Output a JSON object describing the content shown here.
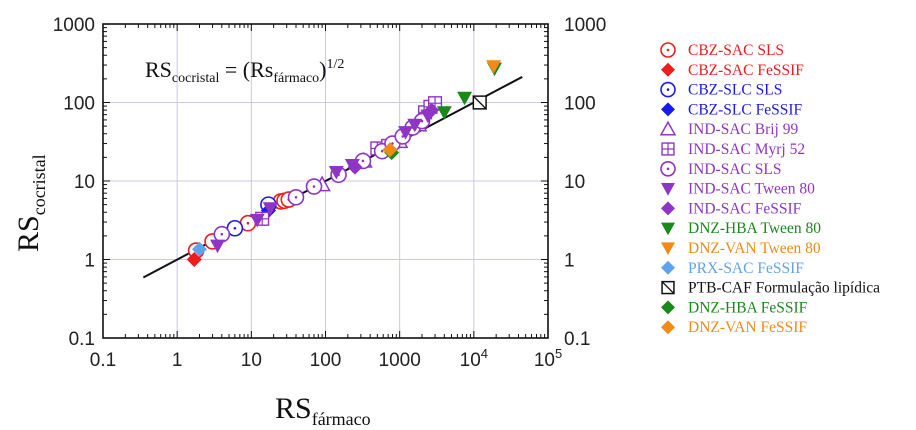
{
  "chart_data": {
    "type": "scatter",
    "title": "",
    "xlabel": {
      "main": "RS",
      "sub": "fármaco"
    },
    "ylabel": {
      "main": "RS",
      "sub": "cocristal"
    },
    "xscale": "log",
    "yscale": "log",
    "xlim": [
      0.1,
      100000
    ],
    "ylim": [
      0.1,
      1000
    ],
    "x_ticks": [
      "0.1",
      "1",
      "10",
      "100",
      "1000",
      "10^4",
      "10^5"
    ],
    "x_tick_values": [
      0.1,
      1,
      10,
      100,
      1000,
      10000,
      100000
    ],
    "y_ticks": [
      "0.1",
      "1",
      "10",
      "100",
      "1000"
    ],
    "y_tick_values": [
      0.1,
      1,
      10,
      100,
      1000
    ],
    "right_y_ticks": [
      "0.1",
      "1",
      "10",
      "100",
      "1000"
    ],
    "grid": true,
    "legend_position": "right-outside",
    "equation": {
      "lhs": "RS",
      "lhs_sub": "cocristal",
      "mid": " = (Rs",
      "mid_sub": "fármaco",
      "rhs": ")",
      "rhs_sup": "1/2"
    },
    "line": {
      "x": [
        0.35,
        45000
      ],
      "y": [
        0.59,
        212
      ]
    },
    "series": [
      {
        "name": "CBZ-SAC SLS",
        "marker": "circle-dot",
        "color": "#ee1c1c",
        "points": [
          [
            1.8,
            1.3
          ],
          [
            3,
            1.7
          ],
          [
            9,
            2.9
          ],
          [
            25,
            5.5
          ],
          [
            28,
            5.6
          ],
          [
            32,
            5.8
          ]
        ]
      },
      {
        "name": "CBZ-SAC FeSSIF",
        "marker": "diamond",
        "color": "#ee1c1c",
        "points": [
          [
            1.7,
            1.0
          ]
        ]
      },
      {
        "name": "CBZ-SLC SLS",
        "marker": "circle-dot",
        "color": "#1a1aee",
        "points": [
          [
            6,
            2.5
          ],
          [
            17,
            5.0
          ]
        ]
      },
      {
        "name": "CBZ-SLC FeSSIF",
        "marker": "diamond",
        "color": "#1a1aee",
        "points": [
          [
            17,
            4.2
          ]
        ]
      },
      {
        "name": "IND-SAC Brij 99",
        "marker": "triangle-up",
        "color": "#8e35c8",
        "points": [
          [
            90,
            9
          ],
          [
            330,
            18
          ],
          [
            1000,
            32
          ],
          [
            1800,
            52
          ]
        ]
      },
      {
        "name": "IND-SAC Myrj 52",
        "marker": "square-plus",
        "color": "#8e35c8",
        "points": [
          [
            14,
            3.3
          ],
          [
            500,
            26
          ],
          [
            700,
            28
          ],
          [
            2200,
            75
          ],
          [
            2600,
            88
          ],
          [
            3000,
            98
          ]
        ]
      },
      {
        "name": "IND-SAC SLS",
        "marker": "circle-dot",
        "color": "#8e35c8",
        "points": [
          [
            4,
            2.1
          ],
          [
            40,
            6.2
          ],
          [
            70,
            8.5
          ],
          [
            150,
            12
          ],
          [
            320,
            18
          ],
          [
            580,
            24
          ],
          [
            800,
            30
          ],
          [
            1100,
            37
          ],
          [
            1500,
            48
          ],
          [
            2000,
            58
          ]
        ]
      },
      {
        "name": "IND-SAC Tween 80",
        "marker": "triangle-down",
        "color": "#8e35c8",
        "points": [
          [
            3.5,
            1.5
          ],
          [
            12,
            3.2
          ],
          [
            18,
            4.5
          ],
          [
            140,
            13
          ],
          [
            230,
            16
          ],
          [
            1200,
            42
          ],
          [
            1600,
            52
          ],
          [
            2400,
            68
          ]
        ]
      },
      {
        "name": "IND-SAC FeSSIF",
        "marker": "diamond",
        "color": "#8e35c8",
        "points": [
          [
            250,
            15
          ],
          [
            2700,
            80
          ]
        ]
      },
      {
        "name": "DNZ-HBA Tween 80",
        "marker": "triangle-down",
        "color": "#19891a",
        "points": [
          [
            4000,
            75
          ],
          [
            7500,
            115
          ],
          [
            19000,
            270
          ]
        ]
      },
      {
        "name": "DNZ-VAN Tween 80",
        "marker": "triangle-down",
        "color": "#f08a18",
        "points": [
          [
            18500,
            290
          ]
        ]
      },
      {
        "name": "PRX-SAC FeSSIF",
        "marker": "diamond",
        "color": "#5fa3ee",
        "points": [
          [
            2,
            1.35
          ]
        ]
      },
      {
        "name": "PTB-CAF Formulação lipídica",
        "marker": "square-x",
        "color": "#111111",
        "points": [
          [
            12000,
            100
          ]
        ]
      },
      {
        "name": "DNZ-HBA FeSSIF",
        "marker": "diamond",
        "color": "#19891a",
        "points": [
          [
            780,
            23
          ]
        ]
      },
      {
        "name": "DNZ-VAN FeSSIF",
        "marker": "diamond",
        "color": "#f08a18",
        "points": [
          [
            740,
            25
          ]
        ]
      }
    ]
  }
}
